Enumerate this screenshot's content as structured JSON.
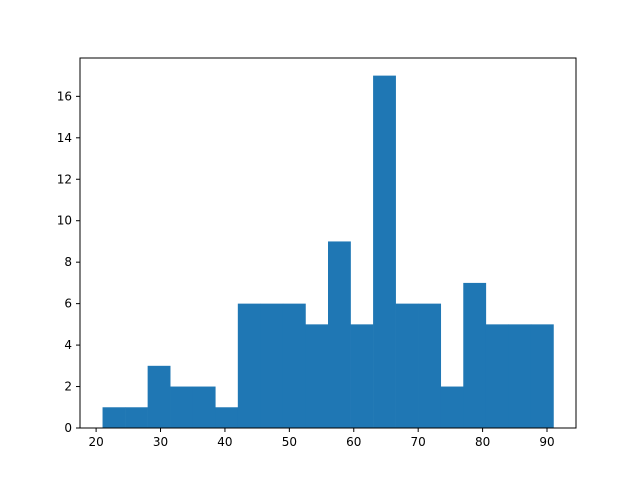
{
  "chart_data": {
    "type": "bar",
    "subtype": "histogram",
    "title": "",
    "xlabel": "",
    "ylabel": "",
    "bin_edges": [
      21,
      24.5,
      28,
      31.5,
      35,
      38.5,
      42,
      45.5,
      49,
      52.5,
      56,
      59.5,
      63,
      66.5,
      70,
      73.5,
      77,
      80.5,
      84,
      87.5,
      91
    ],
    "values": [
      1,
      1,
      3,
      2,
      2,
      1,
      6,
      6,
      6,
      5,
      9,
      5,
      17,
      6,
      6,
      2,
      7,
      5,
      5,
      5
    ],
    "xlim": [
      17.5,
      94.5
    ],
    "ylim": [
      0,
      17.85
    ],
    "xticks": [
      20,
      30,
      40,
      50,
      60,
      70,
      80,
      90
    ],
    "yticks": [
      0,
      2,
      4,
      6,
      8,
      10,
      12,
      14,
      16
    ],
    "bar_color": "#1f77b4",
    "grid": false,
    "legend": "none"
  }
}
